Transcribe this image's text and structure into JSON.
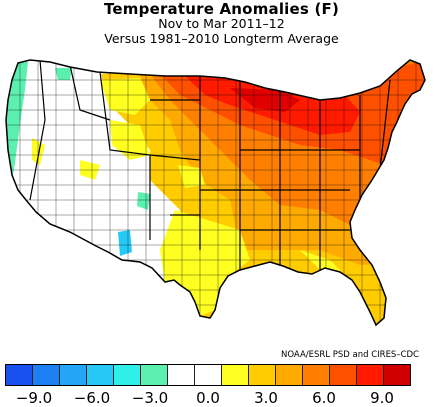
{
  "title": "Temperature Anomalies (F)",
  "subtitle": "Nov to Mar 2011–12",
  "subtitle2": "Versus 1981–2010 Longterm Average",
  "credit": "NOAA/ESRL PSD and CIRES–CDC",
  "colorbar": {
    "colors": [
      "#1a50f0",
      "#1c7ff2",
      "#23a6f5",
      "#26c9f5",
      "#2ff0e8",
      "#5cf0b0",
      "#ffffff",
      "#ffffff",
      "#ffff22",
      "#ffcc00",
      "#ffaa00",
      "#ff8000",
      "#ff5000",
      "#ff1a00",
      "#d00000"
    ],
    "ticks": [
      "−9.0",
      "−6.0",
      "−3.0",
      "0.0",
      "3.0",
      "6.0",
      "9.0"
    ],
    "tick_values": [
      -9,
      -6,
      -3,
      0,
      3,
      6,
      9
    ],
    "range": [
      -10.5,
      10.5
    ]
  }
}
